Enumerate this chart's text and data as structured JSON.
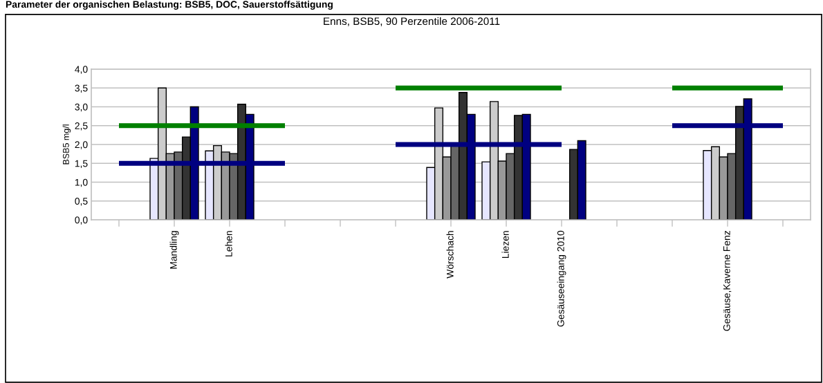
{
  "chart_data": {
    "type": "bar",
    "title": "Enns, BSB5, 90 Perzentile 2006-2011",
    "ylabel": "BSB5 mg/l",
    "annotations": [
      "Parameter der organischen Belastung: BSB5, DOC, Sauerstoffsättigung"
    ],
    "categories": [
      null,
      "Mandling",
      "Lehen",
      null,
      null,
      null,
      "Wörschach",
      "Liezen",
      "Gesäuseeingang 2010",
      null,
      null,
      "Gesäuse,Kaverne Fenz",
      null
    ],
    "series": [
      {
        "color": "#e6e6ff",
        "values": [
          null,
          1.63,
          1.83,
          null,
          null,
          null,
          1.39,
          1.54,
          null,
          null,
          null,
          1.84,
          null
        ]
      },
      {
        "color": "#cccccc",
        "values": [
          null,
          3.5,
          1.97,
          null,
          null,
          null,
          2.97,
          3.14,
          null,
          null,
          null,
          1.94,
          null
        ]
      },
      {
        "color": "#999999",
        "values": [
          null,
          1.76,
          1.8,
          null,
          null,
          null,
          1.67,
          1.56,
          null,
          null,
          null,
          1.67,
          null
        ]
      },
      {
        "color": "#666666",
        "values": [
          null,
          1.8,
          1.76,
          null,
          null,
          null,
          1.97,
          1.76,
          null,
          null,
          null,
          1.76,
          null
        ]
      },
      {
        "color": "#333333",
        "values": [
          null,
          2.2,
          3.07,
          null,
          null,
          null,
          3.38,
          2.77,
          1.87,
          null,
          null,
          3.01,
          null
        ]
      },
      {
        "color": "#000080",
        "values": [
          null,
          3.0,
          2.8,
          null,
          null,
          null,
          2.8,
          2.8,
          2.1,
          null,
          null,
          3.21,
          null
        ]
      },
      {
        "type": "line",
        "color": "#008000",
        "values": [
          2.5,
          2.5,
          2.5,
          2.5,
          null,
          3.5,
          3.5,
          3.5,
          3.5,
          null,
          3.5,
          3.5,
          3.5
        ]
      },
      {
        "type": "line",
        "color": "#000080",
        "values": [
          1.5,
          1.5,
          1.5,
          1.5,
          null,
          2.0,
          2.0,
          2.0,
          2.0,
          null,
          2.5,
          2.5,
          2.5
        ]
      }
    ],
    "ylim": [
      0,
      4
    ],
    "yticks": [
      {
        "value": 0,
        "label": "0,0"
      },
      {
        "value": 0.5,
        "label": "0,5"
      },
      {
        "value": 1,
        "label": "1,0"
      },
      {
        "value": 1.5,
        "label": "1,5"
      },
      {
        "value": 2,
        "label": "2,0"
      },
      {
        "value": 2.5,
        "label": "2,5"
      },
      {
        "value": 3,
        "label": "3,0"
      },
      {
        "value": 3.5,
        "label": "3,5"
      },
      {
        "value": 4,
        "label": "4,0"
      }
    ],
    "grid": "y",
    "marker": "none"
  }
}
